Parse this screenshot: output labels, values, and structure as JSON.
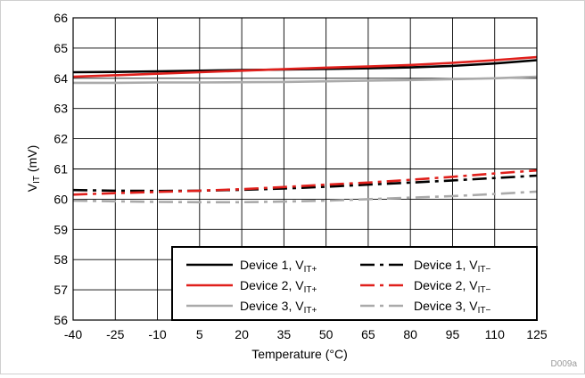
{
  "chart_data": {
    "type": "line",
    "xlabel": "Temperature (°C)",
    "ylabel_main": "V",
    "ylabel_sub": "IT",
    "ylabel_unit": " (mV)",
    "watermark": "D009a",
    "x_ticks": [
      -40,
      -25,
      -10,
      5,
      20,
      35,
      50,
      65,
      80,
      95,
      110,
      125
    ],
    "y_ticks": [
      56,
      57,
      58,
      59,
      60,
      61,
      62,
      63,
      64,
      65,
      66
    ],
    "xlim": [
      -40,
      125
    ],
    "ylim": [
      56,
      66
    ],
    "grid": true,
    "legend_position": "bottom-right",
    "x": [
      -40,
      -25,
      -10,
      5,
      20,
      35,
      50,
      65,
      80,
      95,
      110,
      125
    ],
    "series": [
      {
        "name": "Device 1, V",
        "sub": "IT+",
        "color": "#000000",
        "dash": "solid",
        "values": [
          64.2,
          64.21,
          64.23,
          64.25,
          64.27,
          64.29,
          64.31,
          64.33,
          64.36,
          64.41,
          64.49,
          64.6
        ]
      },
      {
        "name": "Device 2, V",
        "sub": "IT+",
        "color": "#e0201c",
        "dash": "solid",
        "values": [
          64.05,
          64.1,
          64.15,
          64.2,
          64.25,
          64.3,
          64.35,
          64.39,
          64.44,
          64.51,
          64.6,
          64.7
        ]
      },
      {
        "name": "Device 3, V",
        "sub": "IT+",
        "color": "#aaaaaa",
        "dash": "solid",
        "values": [
          63.85,
          63.85,
          63.86,
          63.86,
          63.87,
          63.88,
          63.9,
          63.92,
          63.94,
          63.97,
          64.0,
          64.05
        ]
      },
      {
        "name": "Device 1, V",
        "sub": "IT−",
        "color": "#000000",
        "dash": "dashed",
        "values": [
          60.3,
          60.28,
          60.27,
          60.28,
          60.31,
          60.35,
          60.41,
          60.48,
          60.55,
          60.62,
          60.7,
          60.78
        ]
      },
      {
        "name": "Device 2, V",
        "sub": "IT−",
        "color": "#e0201c",
        "dash": "dashed",
        "values": [
          60.15,
          60.2,
          60.24,
          60.28,
          60.33,
          60.4,
          60.48,
          60.55,
          60.64,
          60.74,
          60.85,
          60.95
        ]
      },
      {
        "name": "Device 3, V",
        "sub": "IT−",
        "color": "#aaaaaa",
        "dash": "dashed",
        "values": [
          59.95,
          59.93,
          59.91,
          59.9,
          59.9,
          59.92,
          59.95,
          60.0,
          60.05,
          60.1,
          60.17,
          60.25
        ]
      }
    ]
  }
}
